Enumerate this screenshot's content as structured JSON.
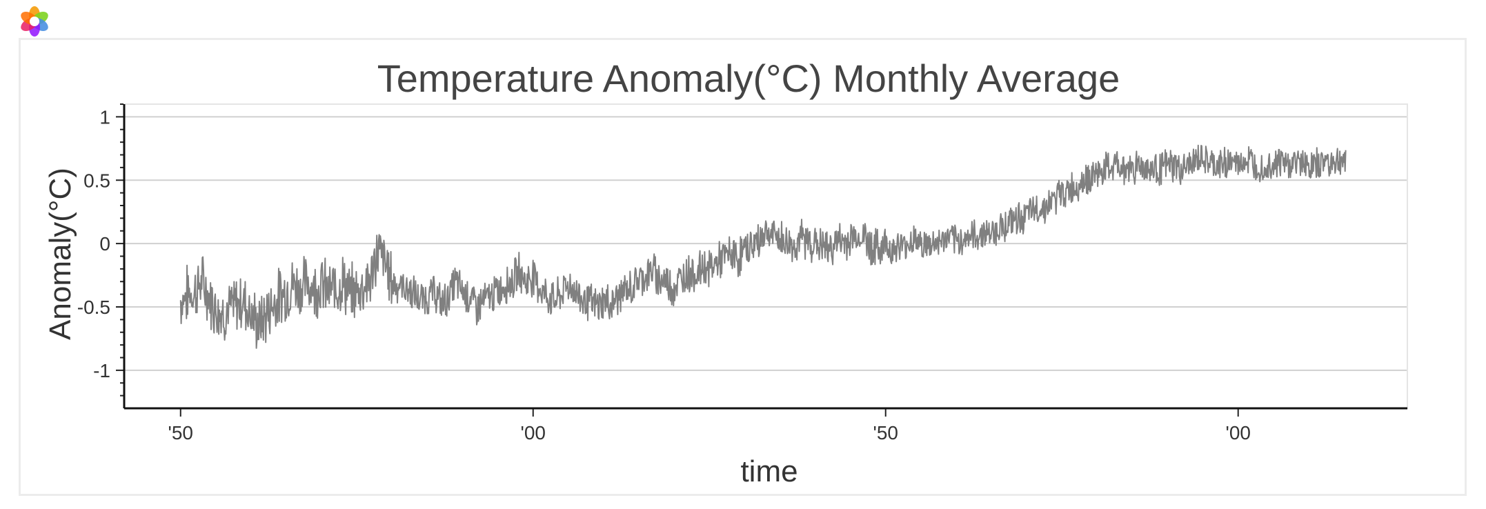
{
  "app": {
    "logo_icon": "app-logo-icon"
  },
  "chart_data": {
    "type": "line",
    "title": "Temperature Anomaly(°C) Monthly Average",
    "xlabel": "time",
    "ylabel": "Anomaly(°C)",
    "xlim": [
      1842,
      2024
    ],
    "ylim": [
      -1.3,
      1.1
    ],
    "y_ticks": [
      1,
      0.5,
      0,
      -0.5,
      -1
    ],
    "y_tick_labels": [
      "1",
      "0.5",
      "0",
      "-0.5",
      "-1"
    ],
    "x_ticks": [
      1850,
      1900,
      1950,
      2000
    ],
    "x_tick_labels": [
      "'50",
      "'00",
      "'50",
      "'00"
    ],
    "grid": true,
    "line_color": "#808080",
    "series": [
      {
        "x_start": 1850,
        "x_end": 2015.25,
        "x_step": "yearly",
        "values": [
          -0.45,
          -0.4,
          -0.38,
          -0.3,
          -0.42,
          -0.5,
          -0.55,
          -0.52,
          -0.48,
          -0.45,
          -0.55,
          -0.65,
          -0.58,
          -0.48,
          -0.42,
          -0.38,
          -0.32,
          -0.35,
          -0.3,
          -0.35,
          -0.32,
          -0.38,
          -0.35,
          -0.3,
          -0.4,
          -0.38,
          -0.32,
          -0.28,
          -0.05,
          -0.15,
          -0.3,
          -0.33,
          -0.35,
          -0.4,
          -0.45,
          -0.42,
          -0.38,
          -0.48,
          -0.42,
          -0.3,
          -0.38,
          -0.42,
          -0.5,
          -0.45,
          -0.42,
          -0.38,
          -0.32,
          -0.3,
          -0.22,
          -0.3,
          -0.25,
          -0.35,
          -0.42,
          -0.45,
          -0.4,
          -0.32,
          -0.38,
          -0.44,
          -0.46,
          -0.5,
          -0.45,
          -0.48,
          -0.42,
          -0.38,
          -0.35,
          -0.28,
          -0.25,
          -0.22,
          -0.28,
          -0.3,
          -0.35,
          -0.28,
          -0.22,
          -0.25,
          -0.18,
          -0.2,
          -0.15,
          -0.12,
          -0.08,
          -0.12,
          -0.05,
          -0.02,
          0.02,
          0.1,
          0.06,
          0.04,
          0.0,
          -0.02,
          0.04,
          0.02,
          0.0,
          -0.02,
          -0.05,
          0.02,
          0.0,
          0.04,
          0.06,
          0.05,
          -0.02,
          -0.04,
          0.0,
          -0.05,
          -0.02,
          -0.02,
          0.05,
          0.0,
          -0.02,
          0.0,
          0.02,
          0.05,
          0.0,
          0.04,
          0.06,
          0.05,
          0.1,
          0.08,
          0.12,
          0.15,
          0.18,
          0.2,
          0.22,
          0.25,
          0.28,
          0.3,
          0.35,
          0.4,
          0.42,
          0.45,
          0.5,
          0.52,
          0.55,
          0.58,
          0.6,
          0.62,
          0.58,
          0.6,
          0.62,
          0.6,
          0.58,
          0.6,
          0.62,
          0.6,
          0.58,
          0.62,
          0.65,
          0.68,
          0.62,
          0.6,
          0.64,
          0.65,
          0.62,
          0.66,
          0.64,
          0.62,
          0.6,
          0.64,
          0.65,
          0.62,
          0.64,
          0.66,
          0.6,
          0.62,
          0.64,
          0.66,
          0.65,
          0.64
        ]
      }
    ]
  }
}
